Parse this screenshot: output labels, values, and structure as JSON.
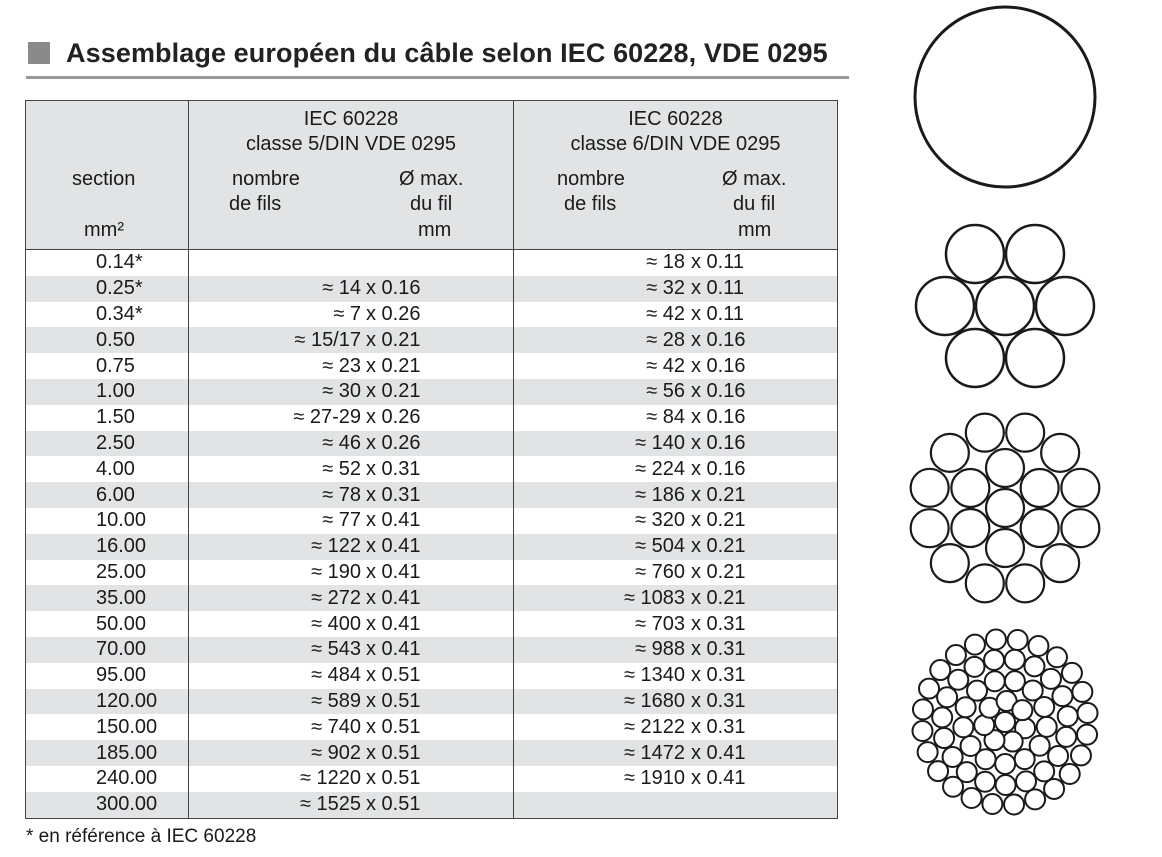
{
  "title": "Assemblage européen du câble selon IEC 60228, VDE 0295",
  "table": {
    "header": {
      "section_label": "section",
      "section_unit": "mm²",
      "class5_line1": "IEC 60228",
      "class5_line2": "classe 5/DIN VDE 0295",
      "class6_line1": "IEC 60228",
      "class6_line2": "classe 6/DIN VDE 0295",
      "count_line1": "nombre",
      "count_line2": "de fils",
      "dia_line1": "Ø max.",
      "dia_line2": "du fil",
      "dia_unit": "mm"
    },
    "rows": [
      {
        "section": "0.14*",
        "c5_count": "",
        "c5_dia": "",
        "c6_count": "≈ 18",
        "c6_dia": "x 0.11"
      },
      {
        "section": "0.25*",
        "c5_count": "≈ 14",
        "c5_dia": "x 0.16",
        "c6_count": "≈ 32",
        "c6_dia": "x 0.11"
      },
      {
        "section": "0.34*",
        "c5_count": "≈ 7",
        "c5_dia": "x 0.26",
        "c6_count": "≈ 42",
        "c6_dia": "x 0.11"
      },
      {
        "section": "0.50",
        "c5_count": "≈ 15/17",
        "c5_dia": "x 0.21",
        "c6_count": "≈ 28",
        "c6_dia": "x 0.16"
      },
      {
        "section": "0.75",
        "c5_count": "≈ 23",
        "c5_dia": "x 0.21",
        "c6_count": "≈ 42",
        "c6_dia": "x 0.16"
      },
      {
        "section": "1.00",
        "c5_count": "≈ 30",
        "c5_dia": "x 0.21",
        "c6_count": "≈ 56",
        "c6_dia": "x 0.16"
      },
      {
        "section": "1.50",
        "c5_count": "≈ 27-29",
        "c5_dia": "x 0.26",
        "c6_count": "≈ 84",
        "c6_dia": "x 0.16"
      },
      {
        "section": "2.50",
        "c5_count": "≈ 46",
        "c5_dia": "x 0.26",
        "c6_count": "≈ 140",
        "c6_dia": "x 0.16"
      },
      {
        "section": "4.00",
        "c5_count": "≈ 52",
        "c5_dia": "x 0.31",
        "c6_count": "≈ 224",
        "c6_dia": "x 0.16"
      },
      {
        "section": "6.00",
        "c5_count": "≈ 78",
        "c5_dia": "x 0.31",
        "c6_count": "≈ 186",
        "c6_dia": "x 0.21"
      },
      {
        "section": "10.00",
        "c5_count": "≈ 77",
        "c5_dia": "x 0.41",
        "c6_count": "≈ 320",
        "c6_dia": "x 0.21"
      },
      {
        "section": "16.00",
        "c5_count": "≈ 122",
        "c5_dia": "x 0.41",
        "c6_count": "≈ 504",
        "c6_dia": "x 0.21"
      },
      {
        "section": "25.00",
        "c5_count": "≈ 190",
        "c5_dia": "x 0.41",
        "c6_count": "≈ 760",
        "c6_dia": "x 0.21"
      },
      {
        "section": "35.00",
        "c5_count": "≈ 272",
        "c5_dia": "x 0.41",
        "c6_count": "≈ 1083",
        "c6_dia": "x 0.21"
      },
      {
        "section": "50.00",
        "c5_count": "≈ 400",
        "c5_dia": "x 0.41",
        "c6_count": "≈ 703",
        "c6_dia": "x 0.31"
      },
      {
        "section": "70.00",
        "c5_count": "≈ 543",
        "c5_dia": "x 0.41",
        "c6_count": "≈ 988",
        "c6_dia": "x 0.31"
      },
      {
        "section": "95.00",
        "c5_count": "≈ 484",
        "c5_dia": "x 0.51",
        "c6_count": "≈ 1340",
        "c6_dia": "x 0.31"
      },
      {
        "section": "120.00",
        "c5_count": "≈ 589",
        "c5_dia": "x 0.51",
        "c6_count": "≈ 1680",
        "c6_dia": "x 0.31"
      },
      {
        "section": "150.00",
        "c5_count": "≈ 740",
        "c5_dia": "x 0.51",
        "c6_count": "≈ 2122",
        "c6_dia": "x 0.31"
      },
      {
        "section": "185.00",
        "c5_count": "≈ 902",
        "c5_dia": "x 0.51",
        "c6_count": "≈ 1472",
        "c6_dia": "x 0.41"
      },
      {
        "section": "240.00",
        "c5_count": "≈ 1220",
        "c5_dia": "x 0.51",
        "c6_count": "≈ 1910",
        "c6_dia": "x 0.41"
      },
      {
        "section": "300.00",
        "c5_count": "≈ 1525",
        "c5_dia": "x 0.51",
        "c6_count": "",
        "c6_dia": ""
      }
    ]
  },
  "footnote": "* en référence à IEC 60228",
  "colors": {
    "header_bg": "#e2e3e4",
    "stripe_bg": "#e2e3e4",
    "title_square": "#8a8a8a",
    "rule": "#999999"
  },
  "illustrations": [
    {
      "name": "solid-conductor-icon"
    },
    {
      "name": "7-strand-conductor-icon"
    },
    {
      "name": "19-strand-conductor-icon"
    },
    {
      "name": "fine-strand-conductor-icon"
    }
  ]
}
